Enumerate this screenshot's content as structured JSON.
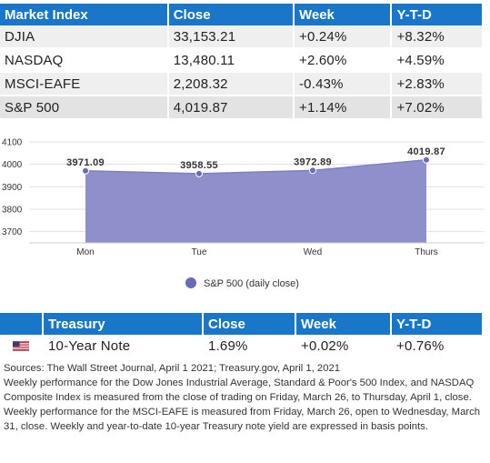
{
  "market": {
    "headers": [
      "Market Index",
      "Close",
      "Week",
      "Y-T-D"
    ],
    "rows": [
      [
        "DJIA",
        "33,153.21",
        "+0.24%",
        "+8.32%"
      ],
      [
        "NASDAQ",
        "13,480.11",
        "+2.60%",
        "+4.59%"
      ],
      [
        "MSCI-EAFE",
        "2,208.32",
        "-0.43%",
        "+2.83%"
      ],
      [
        "S&P 500",
        "4,019.87",
        "+1.14%",
        "+7.02%"
      ]
    ]
  },
  "chart_data": {
    "type": "area",
    "categories": [
      "Mon",
      "Tue",
      "Wed",
      "Thurs"
    ],
    "series": [
      {
        "name": "S&P 500 (daily close)",
        "values": [
          3971.09,
          3958.55,
          3972.89,
          4019.87
        ]
      }
    ],
    "data_labels": [
      "3971.09",
      "3958.55",
      "3972.89",
      "4019.87"
    ],
    "yticks": [
      "3700",
      "3800",
      "3900",
      "4000",
      "4100"
    ],
    "ylim": [
      3650,
      4100
    ],
    "grid": true,
    "legend_position": "bottom",
    "color": "#8f8fcb",
    "marker_color": "#6a6ab8"
  },
  "treasury": {
    "headers": [
      "",
      "Treasury",
      "Close",
      "Week",
      "Y-T-D"
    ],
    "row": {
      "icon": "us-flag-icon",
      "name": "10-Year Note",
      "close": "1.69%",
      "week": "+0.02%",
      "ytd": "+0.76%"
    }
  },
  "notes": {
    "sources": "Sources: The Wall Street Journal, April 1 2021; Treasury.gov, April 1, 2021",
    "body": "Weekly performance for the Dow Jones Industrial Average, Standard & Poor's 500 Index, and NASDAQ Composite Index is measured from the close of trading on Friday, March 26, to Thursday, April 1, close. Weekly performance for the MSCI-EAFE is measured from Friday, March 26, open to Wednesday, March 31, close. Weekly and year-to-date 10-year Treasury note yield are expressed in basis points."
  }
}
